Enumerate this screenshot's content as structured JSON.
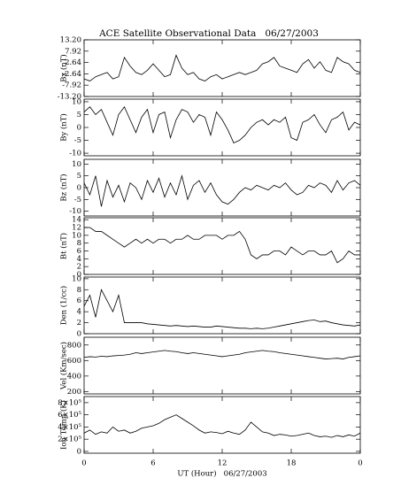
{
  "chart_data": [
    {
      "type": "line",
      "title": "ACE Satellite Observational Data   06/27/2003",
      "ylabel": "Bx (nT)",
      "x": [
        0,
        0.5,
        1,
        1.5,
        2,
        2.5,
        3,
        3.5,
        4,
        4.5,
        5,
        5.5,
        6,
        6.5,
        7,
        7.5,
        8,
        8.5,
        9,
        9.5,
        10,
        10.5,
        11,
        11.5,
        12,
        12.5,
        13,
        13.5,
        14,
        14.5,
        15,
        15.5,
        16,
        16.5,
        17,
        17.5,
        18,
        18.5,
        19,
        19.5,
        20,
        20.5,
        21,
        21.5,
        22,
        22.5,
        23,
        23.5,
        24
      ],
      "xlim": [
        0,
        24
      ],
      "ylim": [
        -13.2,
        13.2
      ],
      "yticks": [
        {
          "value": 13.2,
          "label": "13.20"
        },
        7.92,
        2.64,
        -2.64,
        -7.92,
        {
          "value": -13.2,
          "label": "-13.20"
        }
      ],
      "series": [
        {
          "color": "#000000",
          "values": [
            -5,
            -6,
            -4,
            -3,
            -2,
            -5,
            -4,
            5,
            1,
            -2,
            -3,
            -1,
            2,
            -1,
            -4,
            -3,
            6,
            0,
            -3,
            -2,
            -5,
            -6,
            -4,
            -3,
            -5,
            -4,
            -3,
            -2,
            -3,
            -2,
            -1,
            2,
            3,
            5,
            1,
            0,
            -1,
            -2,
            2,
            4,
            0,
            3,
            -1,
            -2,
            5,
            3,
            2,
            -1,
            -2
          ]
        }
      ]
    },
    {
      "type": "line",
      "ylabel": "By (nT)",
      "x": [
        0,
        0.5,
        1,
        1.5,
        2,
        2.5,
        3,
        3.5,
        4,
        4.5,
        5,
        5.5,
        6,
        6.5,
        7,
        7.5,
        8,
        8.5,
        9,
        9.5,
        10,
        10.5,
        11,
        11.5,
        12,
        12.5,
        13,
        13.5,
        14,
        14.5,
        15,
        15.5,
        16,
        16.5,
        17,
        17.5,
        18,
        18.5,
        19,
        19.5,
        20,
        20.5,
        21,
        21.5,
        22,
        22.5,
        23,
        23.5,
        24
      ],
      "xlim": [
        0,
        24
      ],
      "ylim": [
        -11,
        11
      ],
      "yticks": [
        10,
        5,
        0,
        -5,
        -10
      ],
      "series": [
        {
          "color": "#000000",
          "values": [
            6,
            8,
            5,
            7,
            2,
            -3,
            5,
            8,
            3,
            -2,
            4,
            7,
            -2,
            5,
            6,
            -4,
            3,
            7,
            6,
            2,
            5,
            4,
            -3,
            6,
            3,
            -1,
            -6,
            -5,
            -3,
            0,
            2,
            3,
            1,
            3,
            2,
            4,
            -4,
            -5,
            2,
            3,
            5,
            1,
            -2,
            3,
            4,
            6,
            -1,
            2,
            1
          ]
        }
      ]
    },
    {
      "type": "line",
      "ylabel": "Bz (nT)",
      "x": [
        0,
        0.5,
        1,
        1.5,
        2,
        2.5,
        3,
        3.5,
        4,
        4.5,
        5,
        5.5,
        6,
        6.5,
        7,
        7.5,
        8,
        8.5,
        9,
        9.5,
        10,
        10.5,
        11,
        11.5,
        12,
        12.5,
        13,
        13.5,
        14,
        14.5,
        15,
        15.5,
        16,
        16.5,
        17,
        17.5,
        18,
        18.5,
        19,
        19.5,
        20,
        20.5,
        21,
        21.5,
        22,
        22.5,
        23,
        23.5,
        24
      ],
      "xlim": [
        0,
        24
      ],
      "ylim": [
        -12,
        12
      ],
      "yticks": [
        10,
        5,
        0,
        -5,
        -10
      ],
      "series": [
        {
          "color": "#000000",
          "values": [
            2,
            -3,
            5,
            -8,
            3,
            -4,
            1,
            -6,
            2,
            0,
            -5,
            3,
            -2,
            4,
            -4,
            2,
            -3,
            5,
            -5,
            1,
            3,
            -2,
            2,
            -3,
            -6,
            -7,
            -5,
            -2,
            0,
            -1,
            1,
            0,
            -1,
            1,
            0,
            2,
            -1,
            -3,
            -2,
            1,
            0,
            2,
            1,
            -2,
            3,
            -1,
            2,
            3,
            1
          ]
        }
      ]
    },
    {
      "type": "line",
      "ylabel": "Bt (nT)",
      "x": [
        0,
        0.5,
        1,
        1.5,
        2,
        2.5,
        3,
        3.5,
        4,
        4.5,
        5,
        5.5,
        6,
        6.5,
        7,
        7.5,
        8,
        8.5,
        9,
        9.5,
        10,
        10.5,
        11,
        11.5,
        12,
        12.5,
        13,
        13.5,
        14,
        14.5,
        15,
        15.5,
        16,
        16.5,
        17,
        17.5,
        18,
        18.5,
        19,
        19.5,
        20,
        20.5,
        21,
        21.5,
        22,
        22.5,
        23,
        23.5,
        24
      ],
      "xlim": [
        0,
        24
      ],
      "ylim": [
        0,
        14.5
      ],
      "yticks": [
        14,
        12,
        10,
        8,
        6,
        4,
        2,
        0
      ],
      "series": [
        {
          "color": "#000000",
          "values": [
            12,
            12,
            11,
            11,
            10,
            9,
            8,
            7,
            8,
            9,
            8,
            9,
            8,
            9,
            9,
            8,
            9,
            9,
            10,
            9,
            9,
            10,
            10,
            10,
            9,
            10,
            10,
            11,
            9,
            5,
            4,
            5,
            5,
            6,
            6,
            5,
            7,
            6,
            5,
            6,
            6,
            5,
            5,
            6,
            3,
            4,
            6,
            5,
            5
          ]
        }
      ]
    },
    {
      "type": "line",
      "ylabel": "Den (1/cc)",
      "x": [
        0,
        0.5,
        1,
        1.5,
        2,
        2.5,
        3,
        3.5,
        4,
        4.5,
        5,
        5.5,
        6,
        6.5,
        7,
        7.5,
        8,
        8.5,
        9,
        9.5,
        10,
        10.5,
        11,
        11.5,
        12,
        12.5,
        13,
        13.5,
        14,
        14.5,
        15,
        15.5,
        16,
        16.5,
        17,
        17.5,
        18,
        18.5,
        19,
        19.5,
        20,
        20.5,
        21,
        21.5,
        22,
        22.5,
        23,
        23.5,
        24
      ],
      "xlim": [
        0,
        24
      ],
      "ylim": [
        0,
        10.3
      ],
      "yticks": [
        10,
        8,
        6,
        4,
        2,
        0
      ],
      "series": [
        {
          "color": "#000000",
          "values": [
            5,
            7,
            3,
            8,
            6,
            4,
            7,
            2,
            2,
            2,
            2,
            1.8,
            1.7,
            1.6,
            1.5,
            1.4,
            1.5,
            1.4,
            1.3,
            1.4,
            1.3,
            1.2,
            1.2,
            1.4,
            1.3,
            1.2,
            1.1,
            1.0,
            1.0,
            0.9,
            1.0,
            0.9,
            1.0,
            1.2,
            1.4,
            1.6,
            1.8,
            2.0,
            2.2,
            2.4,
            2.5,
            2.2,
            2.3,
            2.0,
            1.8,
            1.6,
            1.5,
            1.4,
            1.6
          ]
        }
      ]
    },
    {
      "type": "line",
      "ylabel": "Vel (Km/sec)",
      "x": [
        0,
        0.5,
        1,
        1.5,
        2,
        2.5,
        3,
        3.5,
        4,
        4.5,
        5,
        5.5,
        6,
        6.5,
        7,
        7.5,
        8,
        8.5,
        9,
        9.5,
        10,
        10.5,
        11,
        11.5,
        12,
        12.5,
        13,
        13.5,
        14,
        14.5,
        15,
        15.5,
        16,
        16.5,
        17,
        17.5,
        18,
        18.5,
        19,
        19.5,
        20,
        20.5,
        21,
        21.5,
        22,
        22.5,
        23,
        23.5,
        24
      ],
      "xlim": [
        0,
        24
      ],
      "ylim": [
        170,
        900
      ],
      "yticks": [
        800,
        600,
        400,
        200
      ],
      "series": [
        {
          "color": "#000000",
          "values": [
            640,
            650,
            645,
            655,
            650,
            660,
            665,
            670,
            680,
            700,
            690,
            700,
            710,
            720,
            730,
            720,
            715,
            700,
            690,
            700,
            690,
            680,
            670,
            660,
            650,
            660,
            670,
            680,
            700,
            710,
            720,
            730,
            720,
            715,
            700,
            690,
            680,
            670,
            660,
            650,
            640,
            630,
            620,
            625,
            630,
            620,
            640,
            650,
            660
          ]
        }
      ]
    },
    {
      "type": "line",
      "ylabel": "Ion Temp (K)",
      "xlabel": "UT (Hour)   06/27/2003",
      "x": [
        0,
        0.5,
        1,
        1.5,
        2,
        2.5,
        3,
        3.5,
        4,
        4.5,
        5,
        5.5,
        6,
        6.5,
        7,
        7.5,
        8,
        8.5,
        9,
        9.5,
        10,
        10.5,
        11,
        11.5,
        12,
        12.5,
        13,
        13.5,
        14,
        14.5,
        15,
        15.5,
        16,
        16.5,
        17,
        17.5,
        18,
        18.5,
        19,
        19.5,
        20,
        20.5,
        21,
        21.5,
        22,
        22.5,
        23,
        23.5,
        24
      ],
      "xlim": [
        0,
        24
      ],
      "xticks": [
        0,
        6,
        12,
        18,
        {
          "value": 24,
          "label": "0"
        }
      ],
      "ylim": [
        -30000,
        900000
      ],
      "yticks": [
        {
          "value": 800000,
          "label": "8×10⁵"
        },
        {
          "value": 600000,
          "label": "6×10⁵"
        },
        {
          "value": 400000,
          "label": "4×10⁵"
        },
        {
          "value": 200000,
          "label": "2×10⁵"
        },
        0
      ],
      "series": [
        {
          "color": "#000000",
          "values": [
            300000,
            350000,
            280000,
            320000,
            300000,
            400000,
            330000,
            350000,
            300000,
            330000,
            380000,
            400000,
            420000,
            460000,
            520000,
            560000,
            600000,
            540000,
            480000,
            420000,
            350000,
            300000,
            320000,
            310000,
            290000,
            330000,
            300000,
            280000,
            350000,
            480000,
            400000,
            320000,
            300000,
            260000,
            280000,
            270000,
            250000,
            260000,
            280000,
            300000,
            260000,
            240000,
            250000,
            230000,
            260000,
            240000,
            270000,
            250000,
            300000
          ]
        }
      ]
    }
  ]
}
